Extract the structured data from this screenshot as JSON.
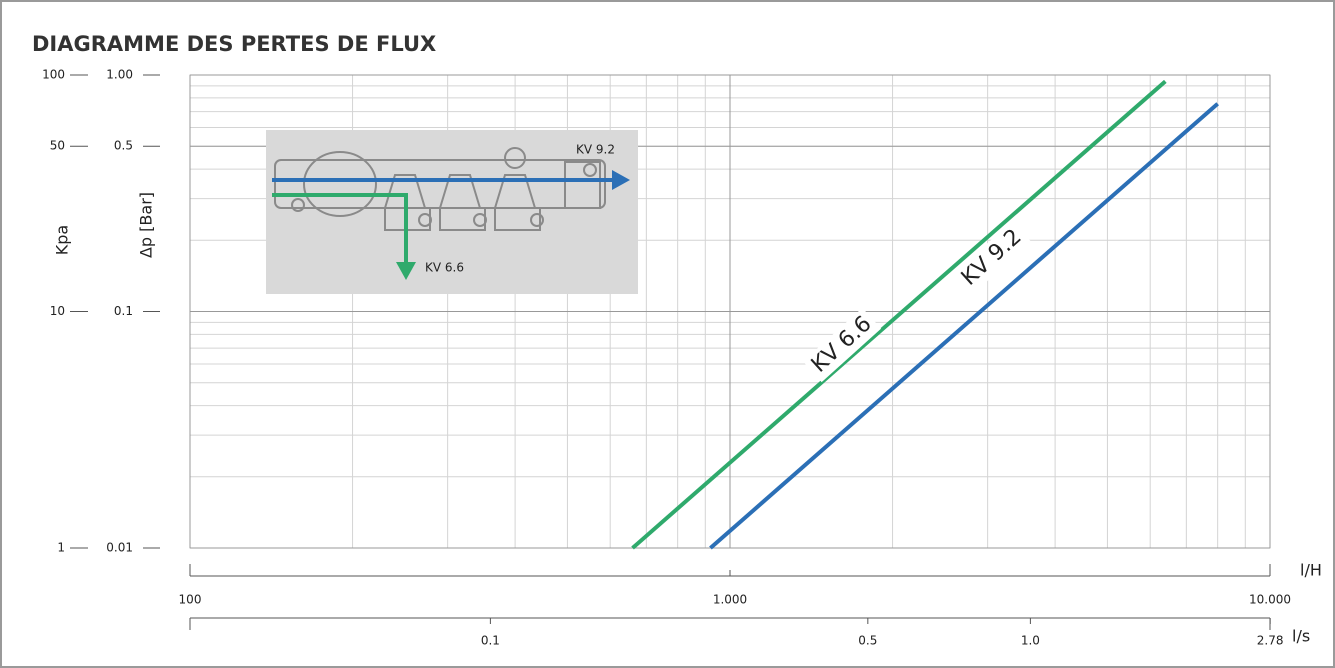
{
  "chart_data": {
    "type": "line",
    "title": "DIAGRAMME DES PERTES DE FLUX",
    "x_label": "l/H",
    "x2_label": "l/s",
    "y_label": "Δp [Bar]",
    "y2_label": "Kpa",
    "log_x": true,
    "log_y": true,
    "grid": true,
    "xlim": [
      100,
      10000
    ],
    "xticks": [
      100,
      {
        "value": 1000,
        "label": "1.000"
      },
      {
        "value": 10000,
        "label": "10.000"
      }
    ],
    "x2lim": [
      0.02778,
      2.778
    ],
    "x2ticks": [
      0.1,
      0.5,
      {
        "value": 1,
        "label": "1.0"
      },
      2.78
    ],
    "ylim": [
      0.01,
      1
    ],
    "yticks": [
      {
        "value": 1,
        "label": "1.00"
      },
      0.5,
      0.1,
      0.01
    ],
    "y2lim": [
      1,
      100
    ],
    "y2ticks": [
      100,
      50,
      10,
      1
    ],
    "series": [
      {
        "name": "KV 6.6",
        "color": "#2faa6c",
        "x": [
          660,
          6400
        ],
        "values": [
          0.01,
          0.94
        ]
      },
      {
        "name": "KV 9.2",
        "color": "#2b6fb6",
        "x": [
          920,
          8000
        ],
        "values": [
          0.01,
          0.756
        ]
      }
    ]
  }
}
